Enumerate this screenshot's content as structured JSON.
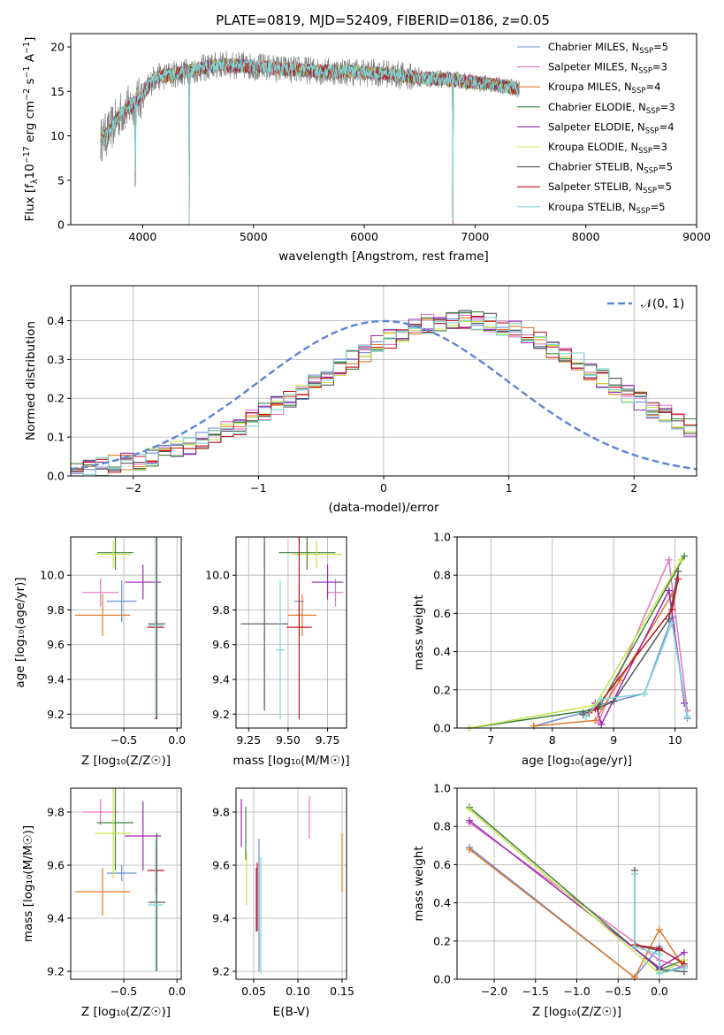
{
  "figure": {
    "title": "PLATE=0819, MJD=52409, FIBERID=0186, z=0.05"
  },
  "models": [
    {
      "name": "Chabrier MILES, N",
      "sub": "SSP",
      "suffix": "=5",
      "color": "#6b8fd6"
    },
    {
      "name": "Salpeter MILES, N",
      "sub": "SSP",
      "suffix": "=3",
      "color": "#e377c2"
    },
    {
      "name": "Kroupa MILES, N",
      "sub": "SSP",
      "suffix": "=4",
      "color": "#e07b2a"
    },
    {
      "name": "Chabrier ELODIE, N",
      "sub": "SSP",
      "suffix": "=3",
      "color": "#3f7f3f"
    },
    {
      "name": "Salpeter ELODIE, N",
      "sub": "SSP",
      "suffix": "=4",
      "color": "#9b27b0"
    },
    {
      "name": "Kroupa ELODIE, N",
      "sub": "SSP",
      "suffix": "=3",
      "color": "#c7e34a"
    },
    {
      "name": "Chabrier STELIB, N",
      "sub": "SSP",
      "suffix": "=5",
      "color": "#555555"
    },
    {
      "name": "Salpeter STELIB, N",
      "sub": "SSP",
      "suffix": "=5",
      "color": "#c0141c"
    },
    {
      "name": "Kroupa STELIB, N",
      "sub": "SSP",
      "suffix": "=5",
      "color": "#7fd6d6"
    }
  ],
  "chart_data": [
    {
      "id": "spectrum",
      "type": "line",
      "xlabel": "wavelength [Angstrom, rest frame]",
      "ylabel_pre": "Flux [f",
      "ylabel_sub": "λ",
      "ylabel_mid": "10",
      "ylabel_sup1": "−17",
      "ylabel_mid2": " erg cm",
      "ylabel_sup2": "−2",
      "ylabel_mid3": " s",
      "ylabel_sup3": "−1",
      "ylabel_post": " A",
      "ylabel_sup4": "−1",
      "ylabel_end": "]",
      "xlim": [
        3350,
        9000
      ],
      "ylim": [
        0,
        21.5
      ],
      "xticks": [
        "4000",
        "5000",
        "6000",
        "7000",
        "8000",
        "9000"
      ],
      "yticks": [
        "0",
        "5",
        "10",
        "15",
        "20"
      ],
      "data_color": "#808080",
      "continuum": {
        "x": [
          3620,
          3700,
          3800,
          3900,
          4000,
          4100,
          4300,
          4500,
          4700,
          5000,
          5300,
          5600,
          5900,
          6200,
          6500,
          6800,
          7000,
          7200,
          7400
        ],
        "y": [
          9.5,
          10.5,
          12.5,
          13.5,
          14.5,
          16.5,
          17.0,
          17.5,
          18.0,
          17.8,
          17.5,
          17.3,
          17.2,
          17.0,
          16.5,
          16.3,
          16.0,
          15.7,
          15.3
        ]
      },
      "absorption_lines": [
        {
          "x": 3933,
          "depth": 14.0
        },
        {
          "x": 4420,
          "depth": 17.0
        },
        {
          "x": 6800,
          "depth": 16.0
        },
        {
          "x": 7410,
          "depth": 15.0
        }
      ],
      "legend_position": "upper right"
    },
    {
      "id": "residuals",
      "type": "histogram",
      "xlabel": "(data-model)/error",
      "ylabel": "Normed distribution",
      "xlim": [
        -2.5,
        2.5
      ],
      "ylim": [
        0,
        0.49
      ],
      "xticks": [
        "−2",
        "−1",
        "0",
        "1",
        "2"
      ],
      "yticks": [
        "0.0",
        "0.1",
        "0.2",
        "0.3",
        "0.4"
      ],
      "bin_width": 0.1,
      "bin_start": -2.5,
      "reference_curve": {
        "label_pre": "𝒩(0, 1)",
        "color": "#5b86d4",
        "style": "dashed"
      },
      "mean_profile": [
        0.017,
        0.02,
        0.024,
        0.029,
        0.034,
        0.04,
        0.048,
        0.056,
        0.066,
        0.077,
        0.088,
        0.101,
        0.115,
        0.13,
        0.146,
        0.163,
        0.181,
        0.2,
        0.219,
        0.239,
        0.259,
        0.279,
        0.299,
        0.318,
        0.337,
        0.353,
        0.368,
        0.381,
        0.391,
        0.398,
        0.402,
        0.403,
        0.4,
        0.395,
        0.386,
        0.375,
        0.362,
        0.346,
        0.329,
        0.311,
        0.292,
        0.272,
        0.252,
        0.232,
        0.212,
        0.193,
        0.174,
        0.157,
        0.14,
        0.124
      ]
    },
    {
      "id": "age_vs_Z",
      "type": "errorbar",
      "xlabel": "Z [log₁₀(Z/Z☉)]",
      "ylabel": "age  [log₁₀(age/yr)]",
      "xlim": [
        -1.0,
        0.04
      ],
      "ylim": [
        9.12,
        10.22
      ],
      "xticks": [
        -0.5,
        0.0
      ],
      "xtick_labels": [
        "−0.5",
        "0.0"
      ],
      "yticks": [
        9.2,
        9.4,
        9.6,
        9.8,
        10.0
      ],
      "ytick_labels": [
        "9.2",
        "9.4",
        "9.6",
        "9.8",
        "10.0"
      ],
      "points": [
        {
          "m": 0,
          "x": -0.52,
          "xerr": 0.14,
          "y": 9.85,
          "yerr": 0.12
        },
        {
          "m": 1,
          "x": -0.72,
          "xerr": 0.17,
          "y": 9.9,
          "yerr": 0.08
        },
        {
          "m": 2,
          "x": -0.7,
          "xerr": 0.26,
          "y": 9.77,
          "yerr": 0.12
        },
        {
          "m": 3,
          "x": -0.58,
          "xerr": 0.17,
          "y": 10.13,
          "yerr": 0.1
        },
        {
          "m": 4,
          "x": -0.32,
          "xerr": 0.17,
          "y": 9.96,
          "yerr": 0.1
        },
        {
          "m": 5,
          "x": -0.6,
          "xerr": 0.17,
          "y": 10.12,
          "yerr": 0.08
        },
        {
          "m": 6,
          "x": -0.19,
          "xerr": 0.08,
          "y": 9.72,
          "yerr": 0.55
        },
        {
          "m": 7,
          "x": -0.2,
          "xerr": 0.08,
          "y": 9.7,
          "yerr": 0.53
        },
        {
          "m": 8,
          "x": -0.2,
          "xerr": 0.07,
          "y": 9.71,
          "yerr": 0.53
        }
      ]
    },
    {
      "id": "age_vs_mass",
      "type": "errorbar",
      "xlabel": "mass [log₁₀(M/M☉)]",
      "ylabel": "",
      "xlim": [
        9.17,
        9.87
      ],
      "ylim": [
        9.12,
        10.22
      ],
      "xticks": [
        9.25,
        9.5,
        9.75
      ],
      "xtick_labels": [
        "9.25",
        "9.50",
        "9.75"
      ],
      "yticks": [
        9.2,
        9.4,
        9.6,
        9.8,
        10.0
      ],
      "ytick_labels": [
        "9.2",
        "9.4",
        "9.6",
        "9.8",
        "10.0"
      ],
      "points": [
        {
          "m": 0,
          "x": 9.57,
          "xerr": 0.03,
          "y": 9.85,
          "yerr": 0.12
        },
        {
          "m": 1,
          "x": 9.8,
          "xerr": 0.05,
          "y": 9.9,
          "yerr": 0.08
        },
        {
          "m": 2,
          "x": 9.59,
          "xerr": 0.09,
          "y": 9.77,
          "yerr": 0.12
        },
        {
          "m": 3,
          "x": 9.62,
          "xerr": 0.18,
          "y": 10.13,
          "yerr": 0.1
        },
        {
          "m": 4,
          "x": 9.75,
          "xerr": 0.1,
          "y": 9.96,
          "yerr": 0.1
        },
        {
          "m": 5,
          "x": 9.68,
          "xerr": 0.16,
          "y": 10.12,
          "yerr": 0.08
        },
        {
          "m": 6,
          "x": 9.35,
          "xerr": 0.15,
          "y": 9.72,
          "yerr": 0.5
        },
        {
          "m": 7,
          "x": 9.57,
          "xerr": 0.08,
          "y": 9.7,
          "yerr": 0.53
        },
        {
          "m": 8,
          "x": 9.45,
          "xerr": 0.03,
          "y": 9.57,
          "yerr": 0.4
        }
      ]
    },
    {
      "id": "weight_vs_age",
      "type": "line",
      "xlabel": "age  [log₁₀(age/yr)]",
      "ylabel": "mass weight",
      "xlim": [
        6.45,
        10.35
      ],
      "ylim": [
        0,
        1.0
      ],
      "xticks": [
        7,
        8,
        9,
        10
      ],
      "xtick_labels": [
        "7",
        "8",
        "9",
        "10"
      ],
      "yticks": [
        0,
        0.2,
        0.4,
        0.6,
        0.8,
        1.0
      ],
      "ytick_labels": [
        "0.0",
        "0.2",
        "0.4",
        "0.6",
        "0.8",
        "1.0"
      ],
      "series": [
        {
          "m": 0,
          "x": [
            7.7,
            8.5,
            8.75,
            9.5,
            9.95,
            10.2
          ],
          "y": [
            0.01,
            0.08,
            0.12,
            0.18,
            0.58,
            0.05
          ]
        },
        {
          "m": 1,
          "x": [
            8.75,
            9.9,
            10.2
          ],
          "y": [
            0.03,
            0.88,
            0.09
          ]
        },
        {
          "m": 2,
          "x": [
            7.7,
            8.7,
            9.1,
            9.95
          ],
          "y": [
            0.01,
            0.04,
            0.25,
            0.7
          ]
        },
        {
          "m": 3,
          "x": [
            6.65,
            8.75,
            10.15
          ],
          "y": [
            0.0,
            0.1,
            0.9
          ]
        },
        {
          "m": 4,
          "x": [
            8.7,
            8.8,
            9.9,
            10.15
          ],
          "y": [
            0.13,
            0.02,
            0.72,
            0.13
          ]
        },
        {
          "m": 5,
          "x": [
            6.65,
            8.7,
            10.1
          ],
          "y": [
            0.0,
            0.12,
            0.88
          ]
        },
        {
          "m": 6,
          "x": [
            8.5,
            9.0,
            9.9,
            10.05
          ],
          "y": [
            0.07,
            0.14,
            0.57,
            0.82
          ]
        },
        {
          "m": 7,
          "x": [
            8.6,
            8.7,
            9.95,
            10.05
          ],
          "y": [
            0.08,
            0.1,
            0.62,
            0.78
          ]
        },
        {
          "m": 8,
          "x": [
            8.55,
            8.8,
            9.5,
            9.95,
            10.2
          ],
          "y": [
            0.06,
            0.15,
            0.18,
            0.55,
            0.06
          ]
        }
      ]
    },
    {
      "id": "mass_vs_Z",
      "type": "errorbar",
      "xlabel": "Z [log₁₀(Z/Z☉)]",
      "ylabel": "mass [log₁₀(M/M☉)]",
      "xlim": [
        -1.0,
        0.04
      ],
      "ylim": [
        9.17,
        9.89
      ],
      "xticks": [
        -0.5,
        0.0
      ],
      "xtick_labels": [
        "−0.5",
        "0.0"
      ],
      "yticks": [
        9.2,
        9.4,
        9.6,
        9.8
      ],
      "ytick_labels": [
        "9.2",
        "9.4",
        "9.6",
        "9.8"
      ],
      "points": [
        {
          "m": 0,
          "x": -0.52,
          "xerr": 0.14,
          "y": 9.57,
          "yerr": 0.03
        },
        {
          "m": 1,
          "x": -0.72,
          "xerr": 0.17,
          "y": 9.8,
          "yerr": 0.05
        },
        {
          "m": 2,
          "x": -0.7,
          "xerr": 0.26,
          "y": 9.5,
          "yerr": 0.09
        },
        {
          "m": 3,
          "x": -0.58,
          "xerr": 0.17,
          "y": 9.76,
          "yerr": 0.18
        },
        {
          "m": 4,
          "x": -0.32,
          "xerr": 0.17,
          "y": 9.71,
          "yerr": 0.13
        },
        {
          "m": 5,
          "x": -0.6,
          "xerr": 0.17,
          "y": 9.72,
          "yerr": 0.17
        },
        {
          "m": 6,
          "x": -0.19,
          "xerr": 0.08,
          "y": 9.46,
          "yerr": 0.26
        },
        {
          "m": 7,
          "x": -0.2,
          "xerr": 0.08,
          "y": 9.58,
          "yerr": 0.09
        },
        {
          "m": 8,
          "x": -0.2,
          "xerr": 0.07,
          "y": 9.45,
          "yerr": 0.25
        }
      ]
    },
    {
      "id": "mass_vs_ebv",
      "type": "errorbar",
      "xlabel": "E(B-V)",
      "ylabel": "",
      "xlim": [
        0.03,
        0.155
      ],
      "ylim": [
        9.17,
        9.89
      ],
      "xticks": [
        0.05,
        0.1,
        0.15
      ],
      "xtick_labels": [
        "0.05",
        "0.10",
        "0.15"
      ],
      "yticks": [
        9.2,
        9.4,
        9.6,
        9.8
      ],
      "ytick_labels": [
        "9.2",
        "9.4",
        "9.6",
        "9.8"
      ],
      "points": [
        {
          "m": 0,
          "x": 0.056,
          "xerr": 0,
          "y": 9.45,
          "yerr": 0.25
        },
        {
          "m": 1,
          "x": 0.113,
          "xerr": 0,
          "y": 9.78,
          "yerr": 0.08
        },
        {
          "m": 2,
          "x": 0.15,
          "xerr": 0,
          "y": 9.61,
          "yerr": 0.11
        },
        {
          "m": 3,
          "x": 0.041,
          "xerr": 0,
          "y": 9.72,
          "yerr": 0.1
        },
        {
          "m": 4,
          "x": 0.036,
          "xerr": 0,
          "y": 9.76,
          "yerr": 0.09
        },
        {
          "m": 5,
          "x": 0.042,
          "xerr": 0,
          "y": 9.55,
          "yerr": 0.1
        },
        {
          "m": 6,
          "x": 0.053,
          "xerr": 0,
          "y": 9.47,
          "yerr": 0.12
        },
        {
          "m": 7,
          "x": 0.054,
          "xerr": 0,
          "y": 9.48,
          "yerr": 0.13
        },
        {
          "m": 8,
          "x": 0.058,
          "xerr": 0,
          "y": 9.41,
          "yerr": 0.22
        }
      ]
    },
    {
      "id": "weight_vs_Z",
      "type": "line",
      "xlabel": "Z [log₁₀(Z/Z☉)]",
      "ylabel": "mass weight",
      "xlim": [
        -2.45,
        0.45
      ],
      "ylim": [
        0,
        1.0
      ],
      "xticks": [
        -2.0,
        -1.5,
        -1.0,
        -0.5,
        0.0
      ],
      "xtick_labels": [
        "−2.0",
        "−1.5",
        "−1.0",
        "−0.5",
        "0.0"
      ],
      "yticks": [
        0,
        0.2,
        0.4,
        0.6,
        0.8,
        1.0
      ],
      "ytick_labels": [
        "0.0",
        "0.2",
        "0.4",
        "0.6",
        "0.8",
        "1.0"
      ],
      "series": [
        {
          "m": 0,
          "x": [
            -2.3,
            -0.3,
            0.0,
            0.0,
            0.3
          ],
          "y": [
            0.69,
            0.01,
            0.17,
            0.03,
            0.07
          ]
        },
        {
          "m": 1,
          "x": [
            -2.3,
            0.0,
            0.3
          ],
          "y": [
            0.82,
            0.1,
            0.06
          ]
        },
        {
          "m": 2,
          "x": [
            -2.3,
            -0.3,
            0.0,
            0.3
          ],
          "y": [
            0.68,
            0.01,
            0.26,
            0.06
          ]
        },
        {
          "m": 3,
          "x": [
            -2.3,
            0.0,
            0.3
          ],
          "y": [
            0.9,
            0.05,
            0.1
          ]
        },
        {
          "m": 4,
          "x": [
            -2.3,
            0.0,
            0.3
          ],
          "y": [
            0.83,
            0.06,
            0.14
          ]
        },
        {
          "m": 5,
          "x": [
            -2.3,
            0.0,
            0.3
          ],
          "y": [
            0.89,
            0.03,
            0.1
          ]
        },
        {
          "m": 6,
          "x": [
            -0.3,
            -0.3,
            0.0,
            0.0,
            0.3
          ],
          "y": [
            0.57,
            0.18,
            0.15,
            0.05,
            0.04
          ]
        },
        {
          "m": 7,
          "x": [
            -0.3,
            0.0,
            0.3
          ],
          "y": [
            0.18,
            0.16,
            0.08
          ]
        },
        {
          "m": 8,
          "x": [
            -0.3,
            -0.3,
            0.0,
            0.0,
            0.3
          ],
          "y": [
            0.55,
            0.17,
            0.13,
            0.03,
            0.06
          ]
        }
      ]
    }
  ]
}
